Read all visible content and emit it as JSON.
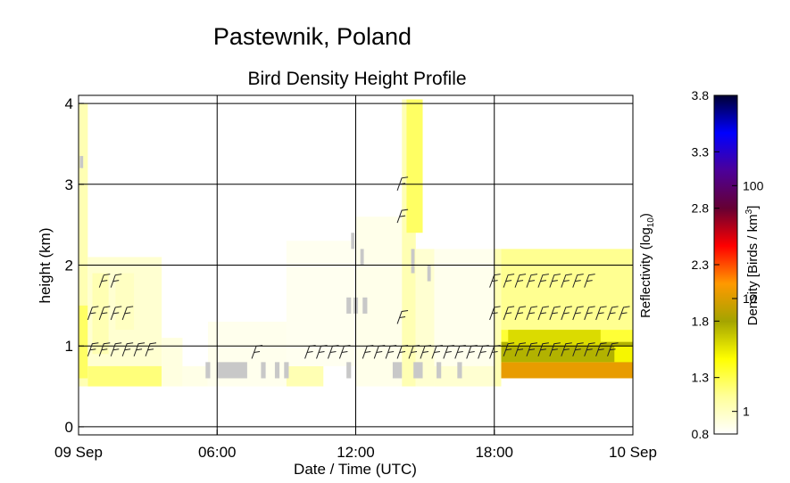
{
  "title": "Pastewnik, Poland",
  "chart_data": {
    "type": "heatmap",
    "subtitle": "Bird Density Height Profile",
    "xlabel": "Date / Time (UTC)",
    "ylabel": "height (km)",
    "x_unit": "hours UTC from 09 Sep 00:00",
    "xlim": [
      0,
      24
    ],
    "ylim": [
      -0.1,
      4.1
    ],
    "x_ticks": [
      {
        "t": 0,
        "label": "09 Sep"
      },
      {
        "t": 6,
        "label": "06:00"
      },
      {
        "t": 12,
        "label": "12:00"
      },
      {
        "t": 18,
        "label": "18:00"
      },
      {
        "t": 24,
        "label": "10 Sep"
      }
    ],
    "y_ticks": [
      0,
      1,
      2,
      3,
      4
    ],
    "grid": true,
    "colorbar": {
      "left_label": "Reflectivity (log",
      "left_label_sub": "10",
      "left_label_end": ")",
      "right_label": "Density [Birds / km",
      "right_label_sup": "3",
      "right_label_end": "]",
      "left_ticks": [
        "0.8",
        "1.3",
        "1.8",
        "2.3",
        "2.8",
        "3.3",
        "3.8"
      ],
      "left_values": [
        0.8,
        1.3,
        1.8,
        2.3,
        2.8,
        3.3,
        3.8
      ],
      "right_ticks": [
        "1",
        "10",
        "100"
      ],
      "right_values": [
        1,
        10,
        100
      ],
      "range": [
        0.8,
        3.8
      ],
      "stops": [
        "#ffffff",
        "#ffff99",
        "#ffff00",
        "#a4a400",
        "#ff9900",
        "#ff0000",
        "#660033",
        "#4c0099",
        "#0000ff",
        "#000033"
      ]
    },
    "cells": [
      {
        "t0": 0,
        "t1": 0.4,
        "h0": 0.5,
        "h1": 4.0,
        "v": 1.05
      },
      {
        "t0": 0,
        "t1": 0.4,
        "h0": 0.6,
        "h1": 1.5,
        "v": 1.25
      },
      {
        "t0": 0.4,
        "t1": 3.6,
        "h0": 0.5,
        "h1": 2.1,
        "v": 0.95
      },
      {
        "t0": 0.4,
        "t1": 3.6,
        "h0": 0.5,
        "h1": 0.75,
        "v": 1.2
      },
      {
        "t0": 0.6,
        "t1": 1.3,
        "h0": 0.9,
        "h1": 1.9,
        "v": 1.05
      },
      {
        "t0": 1.6,
        "t1": 2.4,
        "h0": 1.2,
        "h1": 1.9,
        "v": 1.0
      },
      {
        "t0": 3.6,
        "t1": 4.5,
        "h0": 0.5,
        "h1": 1.1,
        "v": 0.9
      },
      {
        "t0": 4.5,
        "t1": 5.6,
        "h0": 0.5,
        "h1": 0.75,
        "v": 0.88
      },
      {
        "t0": 5.6,
        "t1": 9.0,
        "h0": 0.5,
        "h1": 1.3,
        "v": 0.86
      },
      {
        "t0": 9.0,
        "t1": 10.6,
        "h0": 0.5,
        "h1": 0.75,
        "v": 1.05
      },
      {
        "t0": 9.0,
        "t1": 12.0,
        "h0": 0.75,
        "h1": 2.3,
        "v": 0.85
      },
      {
        "t0": 12.0,
        "t1": 14.0,
        "h0": 0.5,
        "h1": 2.6,
        "v": 0.87
      },
      {
        "t0": 14.0,
        "t1": 14.6,
        "h0": 0.5,
        "h1": 4.05,
        "v": 1.05
      },
      {
        "t0": 14.2,
        "t1": 14.9,
        "h0": 2.4,
        "h1": 4.05,
        "v": 1.25
      },
      {
        "t0": 14.6,
        "t1": 15.4,
        "h0": 0.5,
        "h1": 2.2,
        "v": 0.95
      },
      {
        "t0": 15.4,
        "t1": 18.0,
        "h0": 0.5,
        "h1": 2.2,
        "v": 0.86
      },
      {
        "t0": 15.4,
        "t1": 18.0,
        "h0": 0.5,
        "h1": 0.75,
        "v": 0.95
      },
      {
        "t0": 18.0,
        "t1": 18.3,
        "h0": 0.5,
        "h1": 2.2,
        "v": 1.05
      },
      {
        "t0": 18.3,
        "t1": 24.0,
        "h0": 1.2,
        "h1": 2.2,
        "v": 1.15
      },
      {
        "t0": 18.3,
        "t1": 24.0,
        "h0": 0.8,
        "h1": 1.2,
        "v": 1.35
      },
      {
        "t0": 18.3,
        "t1": 24.0,
        "h0": 0.6,
        "h1": 0.8,
        "v": 2.05
      },
      {
        "t0": 18.3,
        "t1": 24.0,
        "h0": 0.8,
        "h1": 1.05,
        "v": 1.75
      },
      {
        "t0": 18.6,
        "t1": 22.6,
        "h0": 1.0,
        "h1": 1.2,
        "v": 1.6
      },
      {
        "t0": 23.2,
        "t1": 24.0,
        "h0": 0.8,
        "h1": 1.0,
        "v": 1.5
      }
    ],
    "gray_cells": [
      {
        "t0": 5.5,
        "t1": 5.7,
        "h0": 0.6,
        "h1": 0.8
      },
      {
        "t0": 6.0,
        "t1": 7.3,
        "h0": 0.6,
        "h1": 0.8
      },
      {
        "t0": 7.9,
        "t1": 8.1,
        "h0": 0.6,
        "h1": 0.8
      },
      {
        "t0": 8.5,
        "t1": 8.7,
        "h0": 0.6,
        "h1": 0.8
      },
      {
        "t0": 8.9,
        "t1": 9.1,
        "h0": 0.6,
        "h1": 0.8
      },
      {
        "t0": 11.6,
        "t1": 11.8,
        "h0": 0.6,
        "h1": 0.8
      },
      {
        "t0": 13.6,
        "t1": 14.0,
        "h0": 0.6,
        "h1": 0.8
      },
      {
        "t0": 14.5,
        "t1": 14.9,
        "h0": 0.6,
        "h1": 0.8
      },
      {
        "t0": 15.5,
        "t1": 15.7,
        "h0": 0.6,
        "h1": 0.8
      },
      {
        "t0": 16.4,
        "t1": 16.6,
        "h0": 0.6,
        "h1": 0.8
      },
      {
        "t0": 11.6,
        "t1": 11.8,
        "h0": 1.4,
        "h1": 1.6
      },
      {
        "t0": 11.9,
        "t1": 12.1,
        "h0": 1.4,
        "h1": 1.6
      },
      {
        "t0": 12.3,
        "t1": 12.5,
        "h0": 1.4,
        "h1": 1.6
      },
      {
        "t0": 11.8,
        "t1": 11.95,
        "h0": 2.2,
        "h1": 2.4
      },
      {
        "t0": 12.2,
        "t1": 12.35,
        "h0": 2.0,
        "h1": 2.2
      },
      {
        "t0": 14.4,
        "t1": 14.55,
        "h0": 1.9,
        "h1": 2.2
      },
      {
        "t0": 15.1,
        "t1": 15.25,
        "h0": 1.8,
        "h1": 2.0
      },
      {
        "t0": 0.05,
        "t1": 0.2,
        "h0": 3.2,
        "h1": 3.35
      }
    ],
    "wind_barbs": [
      {
        "t": 0.4,
        "h": 0.95
      },
      {
        "t": 0.9,
        "h": 0.95
      },
      {
        "t": 1.4,
        "h": 0.95
      },
      {
        "t": 1.9,
        "h": 0.95
      },
      {
        "t": 2.4,
        "h": 0.95
      },
      {
        "t": 2.9,
        "h": 0.95
      },
      {
        "t": 0.4,
        "h": 1.4
      },
      {
        "t": 0.9,
        "h": 1.4
      },
      {
        "t": 1.4,
        "h": 1.4
      },
      {
        "t": 1.9,
        "h": 1.4
      },
      {
        "t": 0.9,
        "h": 1.8
      },
      {
        "t": 1.4,
        "h": 1.8
      },
      {
        "t": 7.5,
        "h": 0.92
      },
      {
        "t": 9.8,
        "h": 0.92
      },
      {
        "t": 10.3,
        "h": 0.92
      },
      {
        "t": 10.8,
        "h": 0.92
      },
      {
        "t": 11.3,
        "h": 0.92
      },
      {
        "t": 12.3,
        "h": 0.92
      },
      {
        "t": 12.8,
        "h": 0.92
      },
      {
        "t": 13.3,
        "h": 0.92
      },
      {
        "t": 13.8,
        "h": 0.92
      },
      {
        "t": 14.3,
        "h": 0.92
      },
      {
        "t": 14.8,
        "h": 0.92
      },
      {
        "t": 15.3,
        "h": 0.92
      },
      {
        "t": 15.8,
        "h": 0.92
      },
      {
        "t": 16.3,
        "h": 0.92
      },
      {
        "t": 16.8,
        "h": 0.92
      },
      {
        "t": 17.3,
        "h": 0.92
      },
      {
        "t": 17.8,
        "h": 0.92
      },
      {
        "t": 13.8,
        "h": 1.35
      },
      {
        "t": 13.8,
        "h": 2.6
      },
      {
        "t": 13.8,
        "h": 3.0
      },
      {
        "t": 17.8,
        "h": 1.4
      },
      {
        "t": 17.8,
        "h": 1.8
      },
      {
        "t": 18.4,
        "h": 0.95
      },
      {
        "t": 18.9,
        "h": 0.95
      },
      {
        "t": 19.4,
        "h": 0.95
      },
      {
        "t": 19.9,
        "h": 0.95
      },
      {
        "t": 20.4,
        "h": 0.95
      },
      {
        "t": 20.9,
        "h": 0.95
      },
      {
        "t": 21.4,
        "h": 0.95
      },
      {
        "t": 21.9,
        "h": 0.95
      },
      {
        "t": 22.4,
        "h": 0.95
      },
      {
        "t": 22.9,
        "h": 0.95
      },
      {
        "t": 18.4,
        "h": 1.4
      },
      {
        "t": 18.9,
        "h": 1.4
      },
      {
        "t": 19.4,
        "h": 1.4
      },
      {
        "t": 19.9,
        "h": 1.4
      },
      {
        "t": 20.4,
        "h": 1.4
      },
      {
        "t": 20.9,
        "h": 1.4
      },
      {
        "t": 21.4,
        "h": 1.4
      },
      {
        "t": 21.9,
        "h": 1.4
      },
      {
        "t": 22.4,
        "h": 1.4
      },
      {
        "t": 22.9,
        "h": 1.4
      },
      {
        "t": 23.4,
        "h": 1.4
      },
      {
        "t": 18.4,
        "h": 1.8
      },
      {
        "t": 18.9,
        "h": 1.8
      },
      {
        "t": 19.4,
        "h": 1.8
      },
      {
        "t": 19.9,
        "h": 1.8
      },
      {
        "t": 20.4,
        "h": 1.8
      },
      {
        "t": 20.9,
        "h": 1.8
      },
      {
        "t": 21.4,
        "h": 1.8
      },
      {
        "t": 21.9,
        "h": 1.8
      }
    ]
  }
}
